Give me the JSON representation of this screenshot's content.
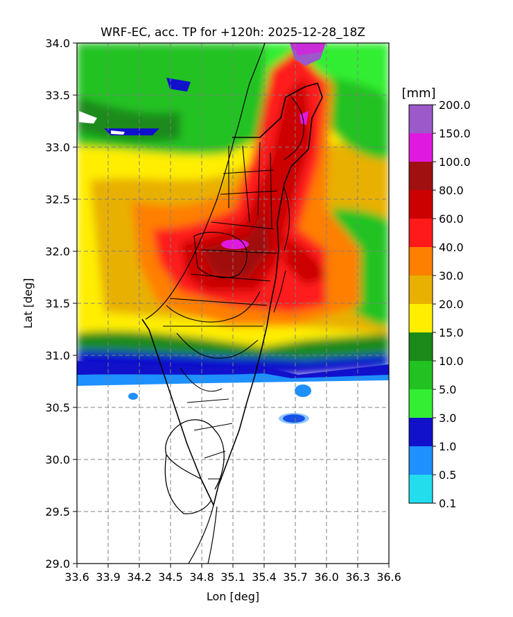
{
  "title": "WRF-EC, acc. TP for +120h: 2025-12-28_18Z",
  "axes": {
    "x_label": "Lon [deg]",
    "y_label": "Lat [deg]",
    "x_ticks": [
      "33.6",
      "33.9",
      "34.2",
      "34.5",
      "34.8",
      "35.1",
      "35.4",
      "35.7",
      "36.0",
      "36.3",
      "36.6"
    ],
    "y_ticks": [
      "34.0",
      "33.5",
      "33.0",
      "32.5",
      "32.0",
      "31.5",
      "31.0",
      "30.5",
      "30.0",
      "29.5",
      "29.0"
    ],
    "x_range": [
      33.6,
      36.6
    ],
    "y_range": [
      29.0,
      34.0
    ],
    "grid": "dashed"
  },
  "colorbar": {
    "unit": "[mm]",
    "levels": [
      "200.0",
      "150.0",
      "100.0",
      "80.0",
      "60.0",
      "40.0",
      "30.0",
      "20.0",
      "15.0",
      "10.0",
      "5.0",
      "3.0",
      "1.0",
      "0.5",
      "0.1"
    ],
    "colors": [
      "#9b59c9",
      "#e019e0",
      "#a01010",
      "#cc0000",
      "#ff1a1a",
      "#ff7f00",
      "#e8b000",
      "#ffee00",
      "#1a8a1a",
      "#22c222",
      "#33ee33",
      "#1111cc",
      "#1e90ff",
      "#22ddee"
    ]
  }
}
